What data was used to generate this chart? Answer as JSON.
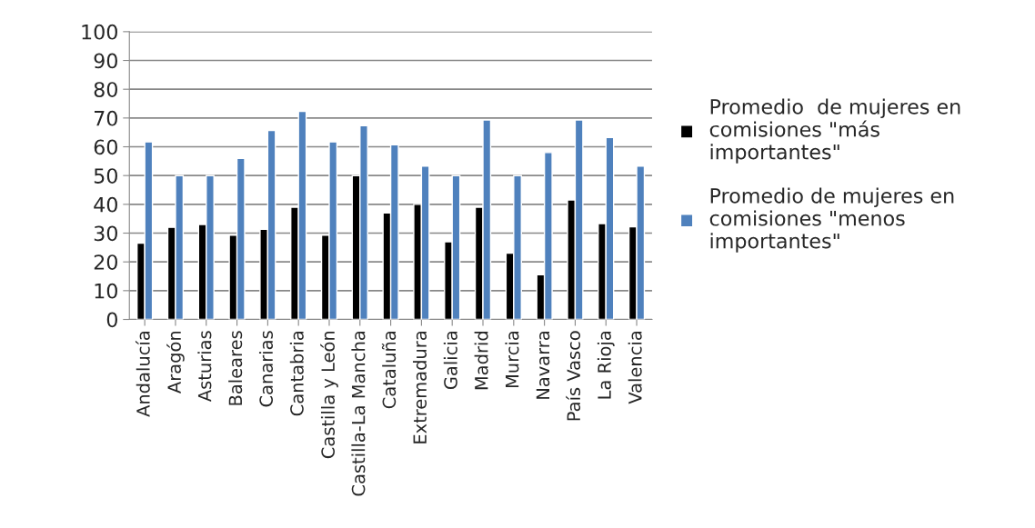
{
  "chart_data": {
    "type": "bar",
    "categories": [
      "Andalucía",
      "Aragón",
      "Asturias",
      "Baleares",
      "Canarias",
      "Cantabria",
      "Castilla y León",
      "Castilla-La Mancha",
      "Cataluña",
      "Extremadura",
      "Galicia",
      "Madrid",
      "Murcia",
      "Navarra",
      "País Vasco",
      "La Rioja",
      "Valencia"
    ],
    "series": [
      {
        "name": "Promedio  de mujeres en comisiones \"más importantes\"",
        "color": "#000000",
        "values": [
          26.5,
          32,
          33,
          29.3,
          31.3,
          39,
          29.3,
          50,
          37,
          40,
          27,
          39,
          23,
          15.5,
          41.5,
          33.3,
          32.2
        ]
      },
      {
        "name": "Promedio de mujeres en comisiones \"menos importantes\"",
        "color": "#4f81bd",
        "values": [
          61.7,
          50,
          50,
          56,
          65.7,
          72.3,
          61.7,
          67.3,
          60.7,
          53.3,
          50,
          69.3,
          50,
          58,
          69.3,
          63.2,
          53.3
        ]
      }
    ],
    "ylim": [
      0,
      100
    ],
    "yticks": [
      0,
      10,
      20,
      30,
      40,
      50,
      60,
      70,
      80,
      90,
      100
    ],
    "grid": "y",
    "legend": "right"
  }
}
